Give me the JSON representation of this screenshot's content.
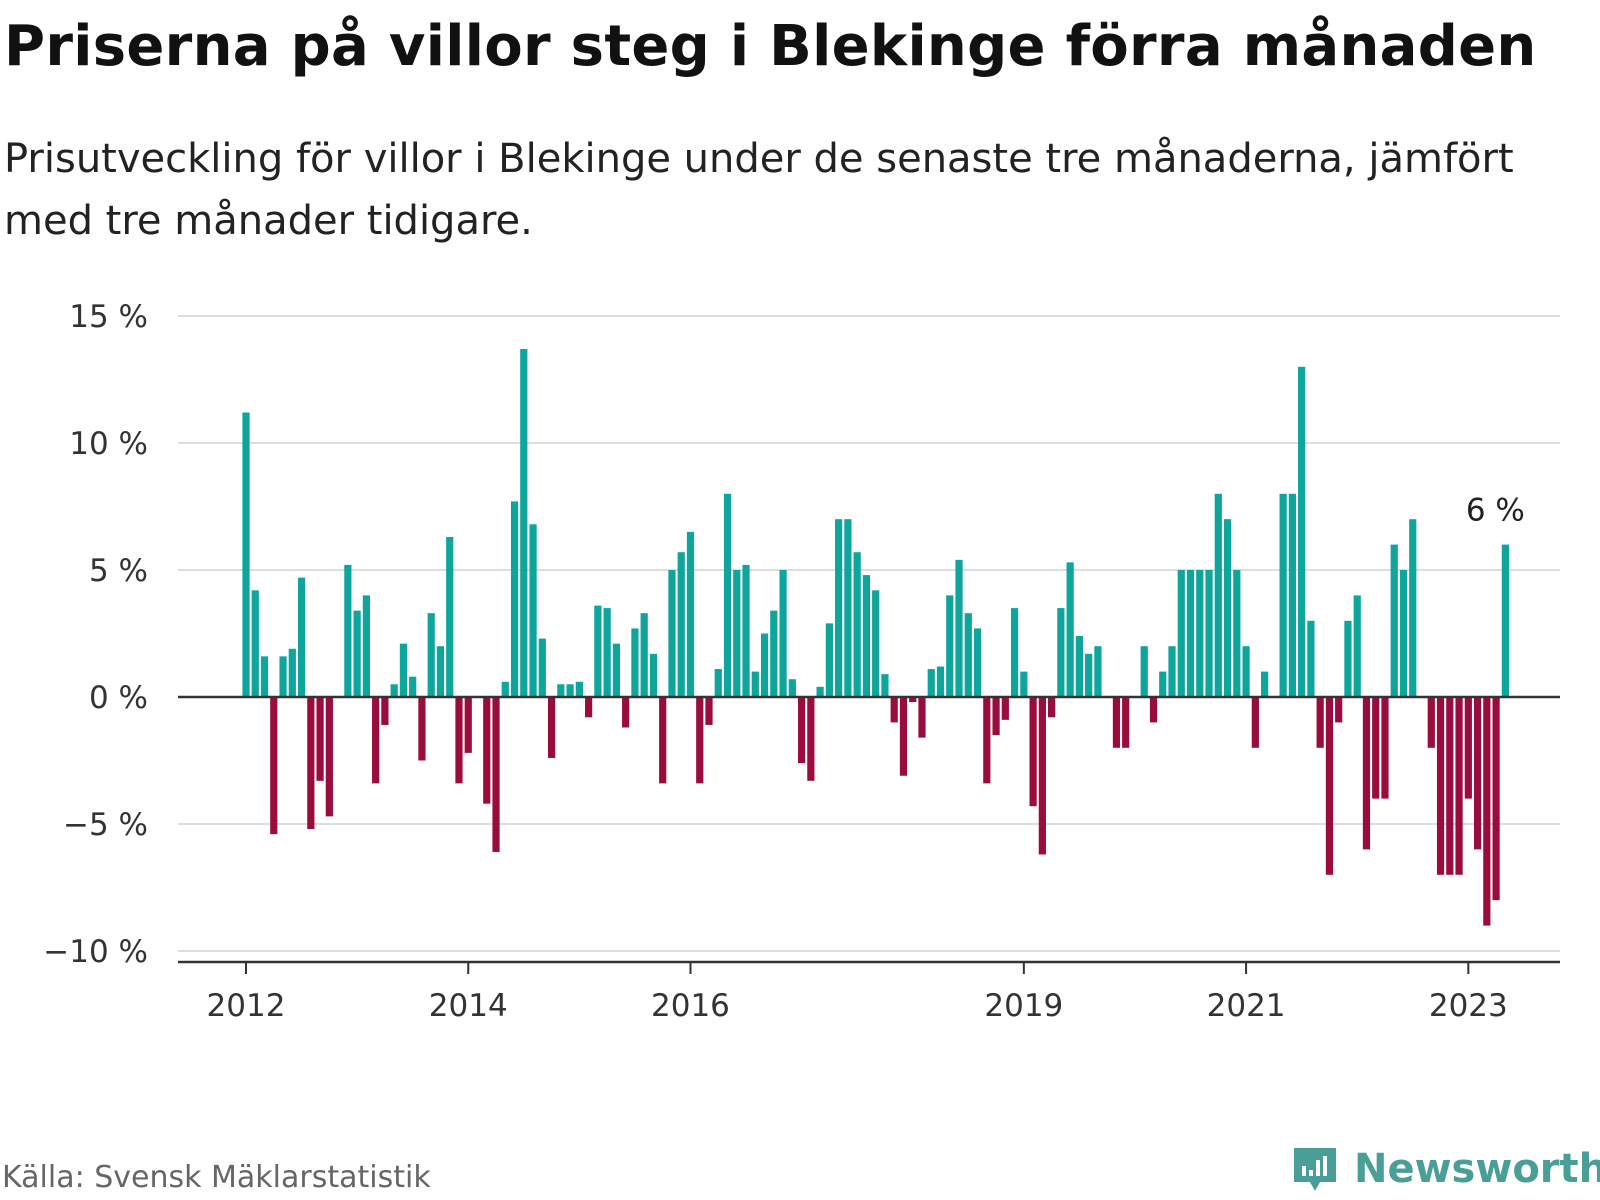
{
  "header": {
    "title": "Priserna på villor steg i Blekinge förra månaden",
    "subtitle": "Prisutveckling för villor i Blekinge under de senaste tre månaderna, jämfört med tre månader tidigare."
  },
  "footer": {
    "source": "Källa: Svensk Mäklarstatistik",
    "brand": "Newsworthy"
  },
  "colors": {
    "positive": "#0ea59c",
    "negative": "#9b0c3e",
    "grid": "#dddddd",
    "axis": "#333333",
    "brand": "#4a9e98"
  },
  "chart_data": {
    "type": "bar",
    "x_start": "2012-01",
    "x_end": "2023-03",
    "y_unit": "%",
    "ylim": [
      -10,
      15
    ],
    "y_ticks": [
      {
        "value": 15,
        "label": "15 %"
      },
      {
        "value": 10,
        "label": "10 %"
      },
      {
        "value": 5,
        "label": "5 %"
      },
      {
        "value": 0,
        "label": "0 %"
      },
      {
        "value": -5,
        "label": "−5 %"
      },
      {
        "value": -10,
        "label": "−10 %"
      }
    ],
    "x_ticks": [
      {
        "month": "2012-01",
        "label": "2012"
      },
      {
        "month": "2014-01",
        "label": "2014"
      },
      {
        "month": "2016-01",
        "label": "2016"
      },
      {
        "month": "2019-01",
        "label": "2019"
      },
      {
        "month": "2021-01",
        "label": "2021"
      },
      {
        "month": "2023-01",
        "label": "2023"
      }
    ],
    "values": [
      11.2,
      4.2,
      1.6,
      -5.4,
      1.6,
      1.9,
      4.7,
      -5.2,
      -3.3,
      -4.7,
      0,
      5.2,
      3.4,
      4.0,
      -3.4,
      -1.1,
      0.5,
      2.1,
      0.8,
      -2.5,
      3.3,
      2.0,
      6.3,
      -3.4,
      -2.2,
      0,
      -4.2,
      -6.1,
      0.6,
      7.7,
      13.7,
      6.8,
      2.3,
      -2.4,
      0.5,
      0.5,
      0.6,
      -0.8,
      3.6,
      3.5,
      2.1,
      -1.2,
      2.7,
      3.3,
      1.7,
      -3.4,
      5.0,
      5.7,
      6.5,
      -3.4,
      -1.1,
      1.1,
      8.0,
      5.0,
      5.2,
      1.0,
      2.5,
      3.4,
      5.0,
      0.7,
      -2.6,
      -3.3,
      0.4,
      2.9,
      7.0,
      7.0,
      5.7,
      4.8,
      4.2,
      0.9,
      -1.0,
      -3.1,
      -0.2,
      -1.6,
      1.1,
      1.2,
      4.0,
      5.4,
      3.3,
      2.7,
      -3.4,
      -1.5,
      -0.9,
      3.5,
      1.0,
      -4.3,
      -6.2,
      -0.8,
      3.5,
      5.3,
      2.4,
      1.7,
      2.0,
      0,
      -2.0,
      -2.0,
      0,
      2.0,
      -1.0,
      1.0,
      2.0,
      5.0,
      5.0,
      5.0,
      5.0,
      8.0,
      7.0,
      5.0,
      2.0,
      -2.0,
      1.0,
      0,
      8.0,
      8.0,
      13.0,
      3.0,
      -2.0,
      -7.0,
      -1.0,
      3.0,
      4.0,
      -6.0,
      -4.0,
      -4.0,
      6.0,
      5.0,
      7.0,
      0,
      -2.0,
      -7.0,
      -7.0,
      -7.0,
      -4.0,
      -6.0,
      -9.0,
      -8.0,
      6.0
    ],
    "last_value_label": "6 %"
  }
}
